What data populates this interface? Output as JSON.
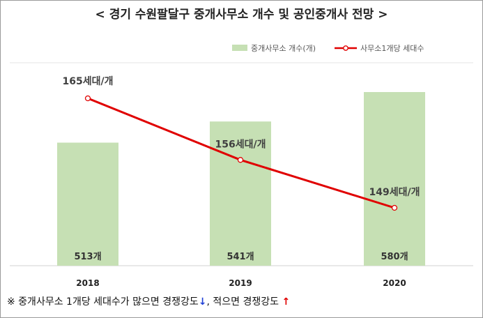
{
  "chart_data": {
    "type": "bar+line",
    "title": "< 경기 수원팔달구 중개사무소 개수 및 공인중개사 전망 >",
    "categories": [
      "2018",
      "2019",
      "2020"
    ],
    "series": [
      {
        "name": "중개사무소 개수(개)",
        "type": "bar",
        "values": [
          513,
          541,
          580
        ],
        "labels": [
          "513개",
          "541개",
          "580개"
        ],
        "color": "#c6e0b4"
      },
      {
        "name": "사무소1개당 세대수",
        "type": "line",
        "values": [
          165,
          156,
          149
        ],
        "labels": [
          "165세대/개",
          "156세대/개",
          "149세대/개"
        ],
        "color": "#e00000"
      }
    ],
    "legend_position": "top-right",
    "grid": false
  },
  "footnote": {
    "prefix": "※ 중개사무소 1개당 세대수가 많으면 경쟁강도",
    "down_arrow": "↓",
    "middle": ", 적으면 경쟁강도",
    "up_arrow": "↑"
  }
}
